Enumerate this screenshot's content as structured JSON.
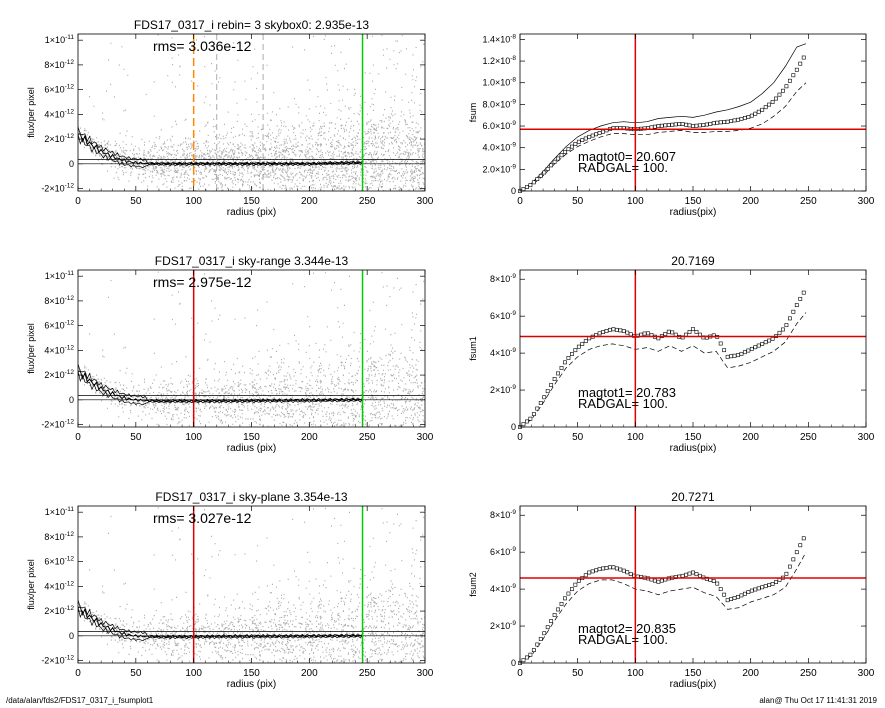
{
  "footer": {
    "path": "/data/alan/fds2/FDS17_0317_i_fsumplot1",
    "timestamp": "alan@  Thu Oct 17 11:41:31 2019"
  },
  "colors": {
    "scatter": "#aaaaaa",
    "profile": "#000000",
    "red_line": "#dd0000",
    "green_line": "#00cc00",
    "orange_line": "#ff8800"
  },
  "chart_data": [
    {
      "type": "scatter",
      "title": "FDS17_0317_i rebin= 3    skybox0:  2.935e-13",
      "annotation": "rms= 3.036e-12",
      "xlabel": "radius (pix)",
      "ylabel": "flux/per pixel",
      "xlim": [
        0,
        300
      ],
      "ylim": [
        -2.2e-12,
        1.05e-11
      ],
      "xticks": [
        "0",
        "50",
        "100",
        "150",
        "200",
        "250",
        "300"
      ],
      "yticks": [
        {
          "value": 1e-11,
          "base": "1×10",
          "exp": "-11"
        },
        {
          "value": 8e-12,
          "base": "8×10",
          "exp": "-12"
        },
        {
          "value": 6e-12,
          "base": "6×10",
          "exp": "-12"
        },
        {
          "value": 4e-12,
          "base": "4×10",
          "exp": "-12"
        },
        {
          "value": 2e-12,
          "base": "2×10",
          "exp": "-12"
        },
        {
          "value": 0,
          "base": "0",
          "exp": ""
        },
        {
          "value": -2e-12,
          "base": "-2×10",
          "exp": "-12"
        }
      ],
      "vlines": [
        {
          "x": 100,
          "color": "orange",
          "style": "dashed"
        },
        {
          "x": 120,
          "color": "gray",
          "style": "dashed"
        },
        {
          "x": 160,
          "color": "gray",
          "style": "dashed"
        },
        {
          "x": 246,
          "color": "green",
          "style": "solid"
        }
      ],
      "hlines": [
        0,
        3.5e-13
      ],
      "profile": {
        "x": [
          0,
          4,
          8,
          12,
          16,
          20,
          25,
          30,
          35,
          40,
          45,
          50,
          55,
          60,
          70,
          80,
          100,
          120,
          150,
          200,
          246
        ],
        "y": [
          2.4e-12,
          2.1e-12,
          1.8e-12,
          1.5e-12,
          1.3e-12,
          1e-12,
          8e-13,
          6e-13,
          4e-13,
          2.5e-13,
          1.5e-13,
          1e-13,
          5e-14,
          2e-14,
          0,
          0,
          0,
          0,
          0,
          0,
          1e-13
        ]
      }
    },
    {
      "type": "line",
      "title": "",
      "annotation": [
        "magtot0=  20.607",
        "RADGAL=    100."
      ],
      "xlabel": "radius(pix)",
      "ylabel": "fsum",
      "xlim": [
        0,
        300
      ],
      "ylim": [
        0,
        1.45e-08
      ],
      "xticks": [
        "0",
        "50",
        "100",
        "150",
        "200",
        "250",
        "300"
      ],
      "yticks": [
        {
          "value": 0,
          "base": "0",
          "exp": ""
        },
        {
          "value": 2e-09,
          "base": "2.0×10",
          "exp": "-9"
        },
        {
          "value": 4e-09,
          "base": "4.0×10",
          "exp": "-9"
        },
        {
          "value": 6e-09,
          "base": "6.0×10",
          "exp": "-9"
        },
        {
          "value": 8e-09,
          "base": "8.0×10",
          "exp": "-9"
        },
        {
          "value": 1e-08,
          "base": "1.0×10",
          "exp": "-8"
        },
        {
          "value": 1.2e-08,
          "base": "1.2×10",
          "exp": "-8"
        },
        {
          "value": 1.4e-08,
          "base": "1.4×10",
          "exp": "-8"
        }
      ],
      "vline": 100,
      "hline": 5.7e-09,
      "x": [
        0,
        10,
        20,
        30,
        40,
        50,
        60,
        70,
        80,
        90,
        100,
        110,
        120,
        130,
        140,
        150,
        160,
        170,
        180,
        190,
        200,
        210,
        220,
        230,
        240,
        248
      ],
      "y": [
        0,
        6e-10,
        1.6e-09,
        2.7e-09,
        3.7e-09,
        4.5e-09,
        5e-09,
        5.4e-09,
        5.8e-09,
        5.8e-09,
        5.7e-09,
        5.8e-09,
        6e-09,
        6.1e-09,
        6.2e-09,
        6e-09,
        6.1e-09,
        6.3e-09,
        6.4e-09,
        6.6e-09,
        6.9e-09,
        7.5e-09,
        8.3e-09,
        9.5e-09,
        1.12e-08,
        1.27e-08
      ],
      "upper": [
        0,
        7e-10,
        1.8e-09,
        3e-09,
        4.1e-09,
        5e-09,
        5.6e-09,
        6e-09,
        6.3e-09,
        6.4e-09,
        6.3e-09,
        6.4e-09,
        6.7e-09,
        6.8e-09,
        6.9e-09,
        6.8e-09,
        7e-09,
        7.3e-09,
        7.5e-09,
        7.8e-09,
        8.2e-09,
        9e-09,
        1e-08,
        1.15e-08,
        1.33e-08,
        1.36e-08
      ],
      "lower": [
        0,
        5e-10,
        1.4e-09,
        2.5e-09,
        3.4e-09,
        4.1e-09,
        4.6e-09,
        5e-09,
        5.3e-09,
        5.3e-09,
        5.2e-09,
        5.2e-09,
        5.4e-09,
        5.5e-09,
        5.6e-09,
        5.4e-09,
        5.4e-09,
        5.5e-09,
        5.5e-09,
        5.6e-09,
        5.8e-09,
        6.2e-09,
        6.9e-09,
        7.8e-09,
        9.2e-09,
        1e-08
      ]
    },
    {
      "type": "scatter",
      "title": "FDS17_0317_i sky-range  3.344e-13",
      "annotation": "rms= 2.975e-12",
      "xlabel": "radius (pix)",
      "ylabel": "flux/per pixel",
      "xlim": [
        0,
        300
      ],
      "ylim": [
        -2.2e-12,
        1.05e-11
      ],
      "xticks": [
        "0",
        "50",
        "100",
        "150",
        "200",
        "250",
        "300"
      ],
      "yticks": [
        {
          "value": 1e-11,
          "base": "1×10",
          "exp": "-11"
        },
        {
          "value": 8e-12,
          "base": "8×10",
          "exp": "-12"
        },
        {
          "value": 6e-12,
          "base": "6×10",
          "exp": "-12"
        },
        {
          "value": 4e-12,
          "base": "4×10",
          "exp": "-12"
        },
        {
          "value": 2e-12,
          "base": "2×10",
          "exp": "-12"
        },
        {
          "value": 0,
          "base": "0",
          "exp": ""
        },
        {
          "value": -2e-12,
          "base": "-2×10",
          "exp": "-12"
        }
      ],
      "vlines": [
        {
          "x": 100,
          "color": "red",
          "style": "solid"
        },
        {
          "x": 246,
          "color": "green",
          "style": "solid"
        }
      ],
      "hlines": [
        0,
        3.5e-13
      ],
      "profile": {
        "x": [
          0,
          4,
          8,
          12,
          16,
          20,
          25,
          30,
          35,
          40,
          45,
          50,
          55,
          60,
          70,
          80,
          100,
          120,
          150,
          200,
          246
        ],
        "y": [
          2.3e-12,
          2e-12,
          1.7e-12,
          1.4e-12,
          1.2e-12,
          9e-13,
          7e-13,
          5e-13,
          3e-13,
          1.5e-13,
          5e-14,
          0,
          -5e-14,
          -8e-14,
          -1e-13,
          -1e-13,
          -1e-13,
          -1e-13,
          -8e-14,
          -5e-14,
          0
        ]
      }
    },
    {
      "type": "line",
      "title": "20.7169",
      "annotation": [
        "magtot1=  20.783",
        "RADGAL=    100."
      ],
      "xlabel": "radius(pix)",
      "ylabel": "fsum1",
      "xlim": [
        0,
        300
      ],
      "ylim": [
        0,
        8.5e-09
      ],
      "xticks": [
        "0",
        "50",
        "100",
        "150",
        "200",
        "250",
        "300"
      ],
      "yticks": [
        {
          "value": 0,
          "base": "0",
          "exp": ""
        },
        {
          "value": 2e-09,
          "base": "2×10",
          "exp": "-9"
        },
        {
          "value": 4e-09,
          "base": "4×10",
          "exp": "-9"
        },
        {
          "value": 6e-09,
          "base": "6×10",
          "exp": "-9"
        },
        {
          "value": 8e-09,
          "base": "8×10",
          "exp": "-9"
        }
      ],
      "vline": 100,
      "hline": 4.9e-09,
      "x": [
        0,
        10,
        20,
        30,
        40,
        50,
        60,
        70,
        80,
        90,
        100,
        110,
        120,
        130,
        140,
        150,
        160,
        170,
        180,
        190,
        200,
        210,
        220,
        230,
        240,
        248
      ],
      "y": [
        0,
        5e-10,
        1.5e-09,
        2.6e-09,
        3.6e-09,
        4.3e-09,
        4.8e-09,
        5.1e-09,
        5.3e-09,
        5.2e-09,
        4.9e-09,
        5.1e-09,
        4.8e-09,
        5.2e-09,
        4.8e-09,
        5.3e-09,
        4.8e-09,
        5e-09,
        3.8e-09,
        3.9e-09,
        4.2e-09,
        4.5e-09,
        4.8e-09,
        5.4e-09,
        6.6e-09,
        7.5e-09
      ],
      "lower": [
        0,
        4e-10,
        1.3e-09,
        2.3e-09,
        3.2e-09,
        3.8e-09,
        4.2e-09,
        4.4e-09,
        4.5e-09,
        4.4e-09,
        4.2e-09,
        4.3e-09,
        4.1e-09,
        4.4e-09,
        4.1e-09,
        4.4e-09,
        4e-09,
        4.1e-09,
        3.2e-09,
        3.3e-09,
        3.5e-09,
        3.8e-09,
        4.1e-09,
        4.6e-09,
        5.6e-09,
        6.2e-09
      ]
    },
    {
      "type": "scatter",
      "title": "FDS17_0317_i sky-plane  3.354e-13",
      "annotation": "rms= 3.027e-12",
      "xlabel": "radius (pix)",
      "ylabel": "flux/per pixel",
      "xlim": [
        0,
        300
      ],
      "ylim": [
        -2.2e-12,
        1.05e-11
      ],
      "xticks": [
        "0",
        "50",
        "100",
        "150",
        "200",
        "250",
        "300"
      ],
      "yticks": [
        {
          "value": 1e-11,
          "base": "1×10",
          "exp": "-11"
        },
        {
          "value": 8e-12,
          "base": "8×10",
          "exp": "-12"
        },
        {
          "value": 6e-12,
          "base": "6×10",
          "exp": "-12"
        },
        {
          "value": 4e-12,
          "base": "4×10",
          "exp": "-12"
        },
        {
          "value": 2e-12,
          "base": "2×10",
          "exp": "-12"
        },
        {
          "value": 0,
          "base": "0",
          "exp": ""
        },
        {
          "value": -2e-12,
          "base": "-2×10",
          "exp": "-12"
        }
      ],
      "vlines": [
        {
          "x": 100,
          "color": "red",
          "style": "solid"
        },
        {
          "x": 246,
          "color": "green",
          "style": "solid"
        }
      ],
      "hlines": [
        0,
        3.5e-13
      ],
      "profile": {
        "x": [
          0,
          4,
          8,
          12,
          16,
          20,
          25,
          30,
          35,
          40,
          45,
          50,
          55,
          60,
          70,
          80,
          100,
          120,
          150,
          200,
          246
        ],
        "y": [
          2.3e-12,
          2e-12,
          1.7e-12,
          1.4e-12,
          1.2e-12,
          9e-13,
          7e-13,
          5e-13,
          3e-13,
          1.5e-13,
          5e-14,
          0,
          -4e-14,
          -6e-14,
          -8e-14,
          -8e-14,
          -8e-14,
          -6e-14,
          -5e-14,
          -3e-14,
          0
        ]
      }
    },
    {
      "type": "line",
      "title": "20.7271",
      "annotation": [
        "magtot2=  20.835",
        "RADGAL=    100."
      ],
      "xlabel": "radius(pix)",
      "ylabel": "fsum2",
      "xlim": [
        0,
        300
      ],
      "ylim": [
        0,
        8.5e-09
      ],
      "xticks": [
        "0",
        "50",
        "100",
        "150",
        "200",
        "250",
        "300"
      ],
      "yticks": [
        {
          "value": 0,
          "base": "0",
          "exp": ""
        },
        {
          "value": 2e-09,
          "base": "2×10",
          "exp": "-9"
        },
        {
          "value": 4e-09,
          "base": "4×10",
          "exp": "-9"
        },
        {
          "value": 6e-09,
          "base": "6×10",
          "exp": "-9"
        },
        {
          "value": 8e-09,
          "base": "8×10",
          "exp": "-9"
        }
      ],
      "vline": 100,
      "hline": 4.6e-09,
      "x": [
        0,
        10,
        20,
        30,
        40,
        50,
        60,
        70,
        80,
        90,
        100,
        110,
        120,
        130,
        140,
        150,
        160,
        170,
        180,
        190,
        200,
        210,
        220,
        230,
        240,
        248
      ],
      "y": [
        0,
        5e-10,
        1.5e-09,
        2.6e-09,
        3.6e-09,
        4.4e-09,
        4.9e-09,
        5.1e-09,
        5.2e-09,
        5e-09,
        4.7e-09,
        4.6e-09,
        4.4e-09,
        4.6e-09,
        4.7e-09,
        4.9e-09,
        4.6e-09,
        4.4e-09,
        3.4e-09,
        3.6e-09,
        3.9e-09,
        4.1e-09,
        4.3e-09,
        4.7e-09,
        6e-09,
        7e-09
      ],
      "lower": [
        0,
        4e-10,
        1.3e-09,
        2.3e-09,
        3.2e-09,
        3.9e-09,
        4.3e-09,
        4.5e-09,
        4.5e-09,
        4.3e-09,
        4e-09,
        3.9e-09,
        3.7e-09,
        3.9e-09,
        4e-09,
        4.1e-09,
        3.8e-09,
        3.6e-09,
        2.9e-09,
        3e-09,
        3.3e-09,
        3.5e-09,
        3.7e-09,
        4.1e-09,
        5.1e-09,
        6e-09
      ]
    }
  ]
}
